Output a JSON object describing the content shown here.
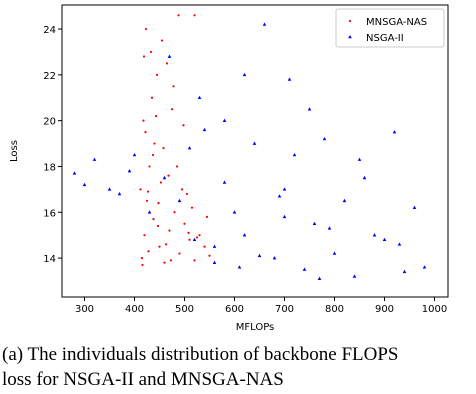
{
  "chart_data": {
    "type": "scatter",
    "xlabel": "MFLOPs",
    "ylabel": "Loss",
    "xlim": [
      255,
      1027
    ],
    "ylim": [
      12.3,
      25.05
    ],
    "xticks": [
      300,
      400,
      500,
      600,
      700,
      800,
      900,
      1000
    ],
    "yticks": [
      14,
      16,
      18,
      20,
      22,
      24
    ],
    "legend": "upper right",
    "series": [
      {
        "name": "MNSGA-NAS",
        "color": "#ff0000",
        "marker": "dot",
        "x": [
          415,
          420,
          425,
          430,
          418,
          440,
          450,
          460,
          470,
          480,
          490,
          500,
          510,
          520,
          530,
          540,
          550,
          412,
          422,
          435,
          445,
          455,
          465,
          475,
          485,
          495,
          505,
          515,
          525,
          545,
          416,
          428,
          438,
          448,
          458,
          468,
          478,
          488,
          498,
          508,
          423,
          433,
          443,
          453,
          463,
          473,
          419,
          427,
          437,
          447,
          520
        ],
        "values": [
          14,
          15,
          16.5,
          18,
          20,
          19,
          14.5,
          13.8,
          15.2,
          16,
          14.2,
          15.5,
          14.8,
          13.9,
          15,
          14.5,
          14.1,
          17,
          19.5,
          21,
          22,
          23.5,
          22.5,
          20.5,
          18,
          17,
          16.8,
          16.2,
          14.9,
          15.8,
          13.7,
          14.3,
          15.7,
          16.4,
          18.8,
          17.6,
          21.5,
          24.6,
          19.8,
          15.1,
          24,
          23,
          20.2,
          17.3,
          14.6,
          13.9,
          22.8,
          16.9,
          18.5,
          15.4,
          24.6
        ]
      },
      {
        "name": "NSGA-II",
        "color": "#0000ff",
        "marker": "triangle",
        "x": [
          280,
          300,
          320,
          350,
          370,
          390,
          400,
          430,
          460,
          490,
          510,
          530,
          560,
          580,
          600,
          620,
          640,
          660,
          680,
          700,
          720,
          740,
          760,
          780,
          800,
          820,
          840,
          860,
          880,
          900,
          920,
          940,
          960,
          980,
          650,
          700,
          750,
          620,
          580,
          540,
          520,
          610,
          690,
          770,
          850,
          930,
          710,
          790,
          560,
          470
        ],
        "values": [
          17.7,
          17.2,
          18.3,
          17,
          16.8,
          17.8,
          18.5,
          16,
          17.5,
          16.5,
          18.8,
          21,
          14.5,
          20,
          16,
          15,
          19,
          24.2,
          14,
          17,
          18.5,
          13.5,
          15.5,
          19.2,
          14.2,
          16.5,
          13.2,
          17.5,
          15,
          14.8,
          19.5,
          13.4,
          16.2,
          13.6,
          14.1,
          15.8,
          20.5,
          22,
          17.3,
          19.6,
          14.8,
          13.6,
          16.7,
          13.1,
          18.3,
          14.6,
          21.8,
          15.3,
          13.8,
          22.8
        ]
      }
    ]
  },
  "caption": {
    "line1": "(a) The individuals distribution of backbone FLOPS",
    "line2": "loss for NSGA-II and MNSGA-NAS"
  }
}
